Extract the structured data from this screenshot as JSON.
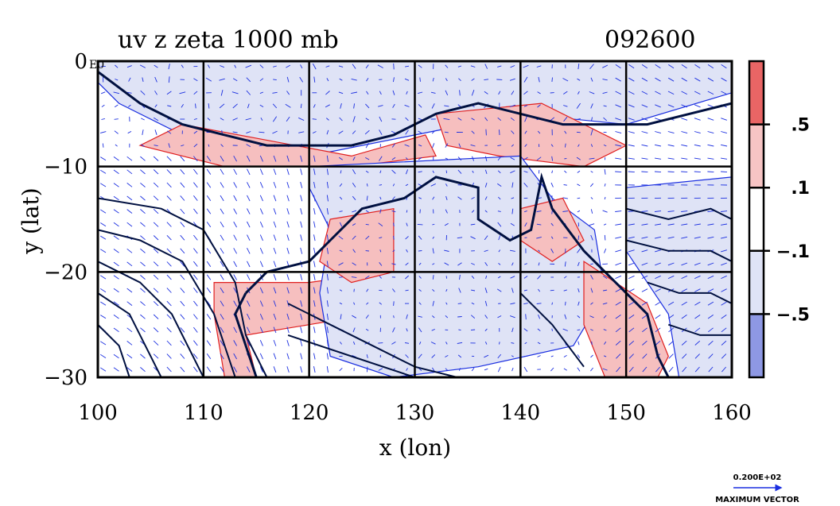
{
  "chart_data": {
    "type": "heatmap",
    "title": "uv z zeta 1000 mb",
    "timestamp": "092600",
    "xlabel": "x (lon)",
    "ylabel": "y (lat)",
    "xlim": [
      100,
      160
    ],
    "ylim": [
      -30,
      0
    ],
    "x_ticks": [
      100,
      110,
      120,
      130,
      140,
      150,
      160
    ],
    "y_ticks": [
      0,
      -10,
      -20,
      -30
    ],
    "y_tick_labels": [
      "0",
      "−10",
      "−20",
      "−30"
    ],
    "corner_label": "E0",
    "grid": true,
    "colorbar": {
      "colors": [
        "#e96565",
        "#f7c4c4",
        "#ffffff",
        "#dfe3f6",
        "#8e98e4"
      ],
      "tick_labels": [
        ".5",
        ".1",
        "−.1",
        "−.5"
      ]
    },
    "vector_reference": {
      "value": "0.200E+02",
      "label": "MAXIMUM VECTOR"
    },
    "colors": {
      "contour": "#001040",
      "vector": "#1a2ee0",
      "positive_line": "#e02020",
      "negative_fill": "#dfe3f6",
      "positive_fill": "#f6bfbf"
    },
    "regions": [
      {
        "name": "north-band-neg",
        "sign": "neg",
        "poly": [
          [
            100,
            0
          ],
          [
            160,
            0
          ],
          [
            160,
            -3
          ],
          [
            150,
            -6
          ],
          [
            140,
            -5
          ],
          [
            130,
            -7
          ],
          [
            120,
            -9
          ],
          [
            110,
            -8
          ],
          [
            102,
            -4
          ],
          [
            100,
            -2
          ]
        ]
      },
      {
        "name": "north-band-pos",
        "sign": "pos",
        "poly": [
          [
            108,
            -6
          ],
          [
            124,
            -9
          ],
          [
            131,
            -7
          ],
          [
            132,
            -9
          ],
          [
            124,
            -10
          ],
          [
            112,
            -10
          ],
          [
            104,
            -8
          ]
        ]
      },
      {
        "name": "timor-pos",
        "sign": "pos",
        "poly": [
          [
            132,
            -5
          ],
          [
            142,
            -4
          ],
          [
            150,
            -8
          ],
          [
            146,
            -10
          ],
          [
            138,
            -9
          ],
          [
            133,
            -8
          ]
        ]
      },
      {
        "name": "west-pos",
        "sign": "pos",
        "poly": [
          [
            111,
            -21
          ],
          [
            120,
            -21
          ],
          [
            127,
            -20
          ],
          [
            126,
            -24
          ],
          [
            120,
            -25
          ],
          [
            114,
            -26
          ],
          [
            115,
            -30
          ],
          [
            112,
            -30
          ],
          [
            111,
            -24
          ]
        ]
      },
      {
        "name": "central-neg",
        "sign": "neg",
        "poly": [
          [
            120,
            -10
          ],
          [
            140,
            -9
          ],
          [
            143,
            -13
          ],
          [
            147,
            -16
          ],
          [
            148,
            -22
          ],
          [
            145,
            -27
          ],
          [
            136,
            -29
          ],
          [
            128,
            -30
          ],
          [
            122,
            -28
          ],
          [
            121,
            -22
          ],
          [
            122,
            -16
          ],
          [
            120,
            -12
          ]
        ]
      },
      {
        "name": "central-pos",
        "sign": "pos",
        "poly": [
          [
            122,
            -15
          ],
          [
            128,
            -14
          ],
          [
            128,
            -20
          ],
          [
            124,
            -21
          ],
          [
            121,
            -19
          ]
        ]
      },
      {
        "name": "carpentaria-pos",
        "sign": "pos",
        "poly": [
          [
            140,
            -14
          ],
          [
            144,
            -13
          ],
          [
            146,
            -17
          ],
          [
            143,
            -19
          ],
          [
            140,
            -17
          ]
        ]
      },
      {
        "name": "east-coast-pos",
        "sign": "pos",
        "poly": [
          [
            146,
            -19
          ],
          [
            152,
            -23
          ],
          [
            154,
            -28
          ],
          [
            153,
            -30
          ],
          [
            148,
            -30
          ],
          [
            146,
            -25
          ]
        ]
      },
      {
        "name": "east-neg",
        "sign": "neg",
        "poly": [
          [
            150,
            -12
          ],
          [
            160,
            -11
          ],
          [
            160,
            -30
          ],
          [
            155,
            -30
          ],
          [
            154,
            -24
          ],
          [
            150,
            -18
          ]
        ]
      }
    ],
    "contours": [
      {
        "name": "coast-north",
        "points": [
          [
            100,
            -1
          ],
          [
            104,
            -4
          ],
          [
            108,
            -6
          ],
          [
            112,
            -7
          ],
          [
            116,
            -8
          ],
          [
            120,
            -8
          ],
          [
            124,
            -8
          ],
          [
            128,
            -7
          ],
          [
            132,
            -5
          ],
          [
            136,
            -4
          ],
          [
            140,
            -5
          ],
          [
            144,
            -6
          ],
          [
            148,
            -6
          ],
          [
            152,
            -6
          ],
          [
            156,
            -5
          ],
          [
            160,
            -4
          ]
        ]
      },
      {
        "name": "coast-australia",
        "points": [
          [
            114,
            -22
          ],
          [
            116,
            -20
          ],
          [
            120,
            -19
          ],
          [
            122,
            -17
          ],
          [
            125,
            -14
          ],
          [
            129,
            -13
          ],
          [
            132,
            -11
          ],
          [
            136,
            -12
          ],
          [
            136,
            -15
          ],
          [
            139,
            -17
          ],
          [
            141,
            -16
          ],
          [
            142,
            -11
          ],
          [
            143,
            -14
          ],
          [
            146,
            -18
          ],
          [
            149,
            -21
          ],
          [
            152,
            -24
          ],
          [
            153,
            -28
          ],
          [
            154,
            -30
          ]
        ]
      },
      {
        "name": "coast-west",
        "points": [
          [
            114,
            -22
          ],
          [
            113,
            -24
          ],
          [
            114,
            -27
          ],
          [
            115,
            -30
          ]
        ]
      },
      {
        "name": "isobar-1",
        "points": [
          [
            100,
            -13
          ],
          [
            106,
            -14
          ],
          [
            110,
            -16
          ],
          [
            113,
            -21
          ],
          [
            114,
            -26
          ],
          [
            116,
            -30
          ]
        ]
      },
      {
        "name": "isobar-2",
        "points": [
          [
            100,
            -16
          ],
          [
            104,
            -17
          ],
          [
            108,
            -19
          ],
          [
            111,
            -24
          ],
          [
            113,
            -30
          ]
        ]
      },
      {
        "name": "isobar-3",
        "points": [
          [
            100,
            -19
          ],
          [
            104,
            -21
          ],
          [
            107,
            -24
          ],
          [
            110,
            -30
          ]
        ]
      },
      {
        "name": "isobar-4",
        "points": [
          [
            100,
            -22
          ],
          [
            103,
            -24
          ],
          [
            106,
            -30
          ]
        ]
      },
      {
        "name": "isobar-5",
        "points": [
          [
            100,
            -25
          ],
          [
            102,
            -27
          ],
          [
            103,
            -30
          ]
        ]
      },
      {
        "name": "isobar-6",
        "points": [
          [
            118,
            -23
          ],
          [
            122,
            -25
          ],
          [
            126,
            -27
          ],
          [
            130,
            -29
          ],
          [
            134,
            -30
          ]
        ]
      },
      {
        "name": "isobar-7",
        "points": [
          [
            118,
            -26
          ],
          [
            124,
            -28
          ],
          [
            130,
            -30
          ]
        ]
      },
      {
        "name": "isobar-8",
        "points": [
          [
            140,
            -22
          ],
          [
            143,
            -25
          ],
          [
            146,
            -29
          ]
        ]
      },
      {
        "name": "isobar-9",
        "points": [
          [
            150,
            -14
          ],
          [
            154,
            -15
          ],
          [
            158,
            -14
          ],
          [
            160,
            -15
          ]
        ]
      },
      {
        "name": "isobar-10",
        "points": [
          [
            150,
            -17
          ],
          [
            154,
            -18
          ],
          [
            158,
            -18
          ],
          [
            160,
            -19
          ]
        ]
      },
      {
        "name": "isobar-11",
        "points": [
          [
            152,
            -21
          ],
          [
            155,
            -22
          ],
          [
            158,
            -22
          ],
          [
            160,
            -23
          ]
        ]
      },
      {
        "name": "isobar-12",
        "points": [
          [
            154,
            -25
          ],
          [
            157,
            -26
          ],
          [
            160,
            -26
          ]
        ]
      }
    ]
  }
}
